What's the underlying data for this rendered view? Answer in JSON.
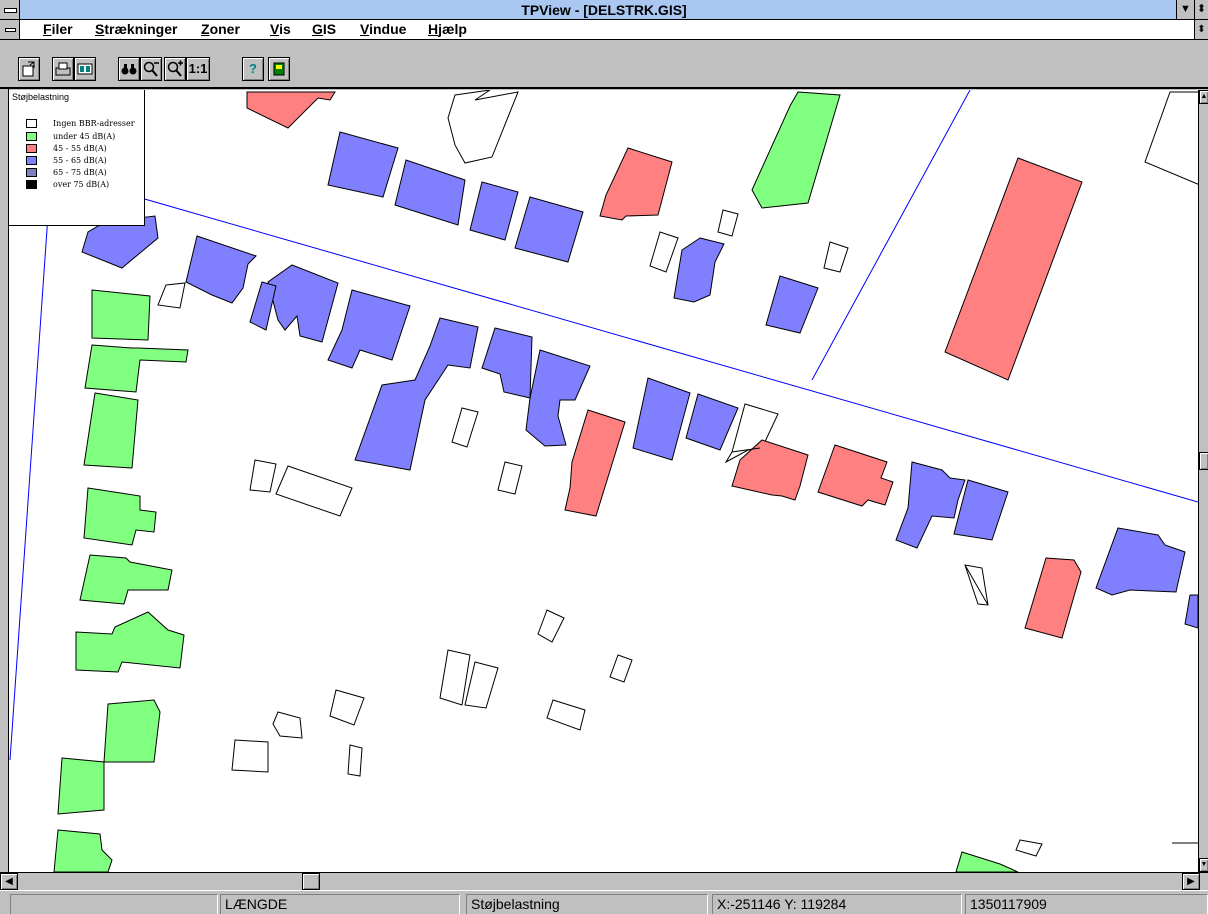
{
  "window": {
    "title": "TPView - [DELSTRK.GIS]"
  },
  "menu": [
    "Filer",
    "Strækninger",
    "Zoner",
    "Vis",
    "GIS",
    "Vindue",
    "Hjælp"
  ],
  "toolbar": {
    "zoom_reset_label": "1:1",
    "help_label": "?"
  },
  "legend": {
    "title": "Støjbelastning",
    "items": [
      {
        "label": "Ingen BBR-adresser",
        "color": "#ffffff"
      },
      {
        "label": "under 45 dB(A)",
        "color": "#80ff80"
      },
      {
        "label": "45 - 55 dB(A)",
        "color": "#ff8080"
      },
      {
        "label": "55 - 65 dB(A)",
        "color": "#8080ff"
      },
      {
        "label": "65 - 75 dB(A)",
        "color": "#8080c0"
      },
      {
        "label": "over 75 dB(A)",
        "color": "#000000"
      }
    ]
  },
  "status": {
    "mode": "LÆNGDE",
    "layer": "Støjbelastning",
    "coords": "X:-251146 Y: 119284",
    "id": "1350117909"
  },
  "colors": {
    "white": "#ffffff",
    "green": "#80ff80",
    "red": "#ff8080",
    "blue": "#8080ff",
    "road": "#0000ff"
  }
}
